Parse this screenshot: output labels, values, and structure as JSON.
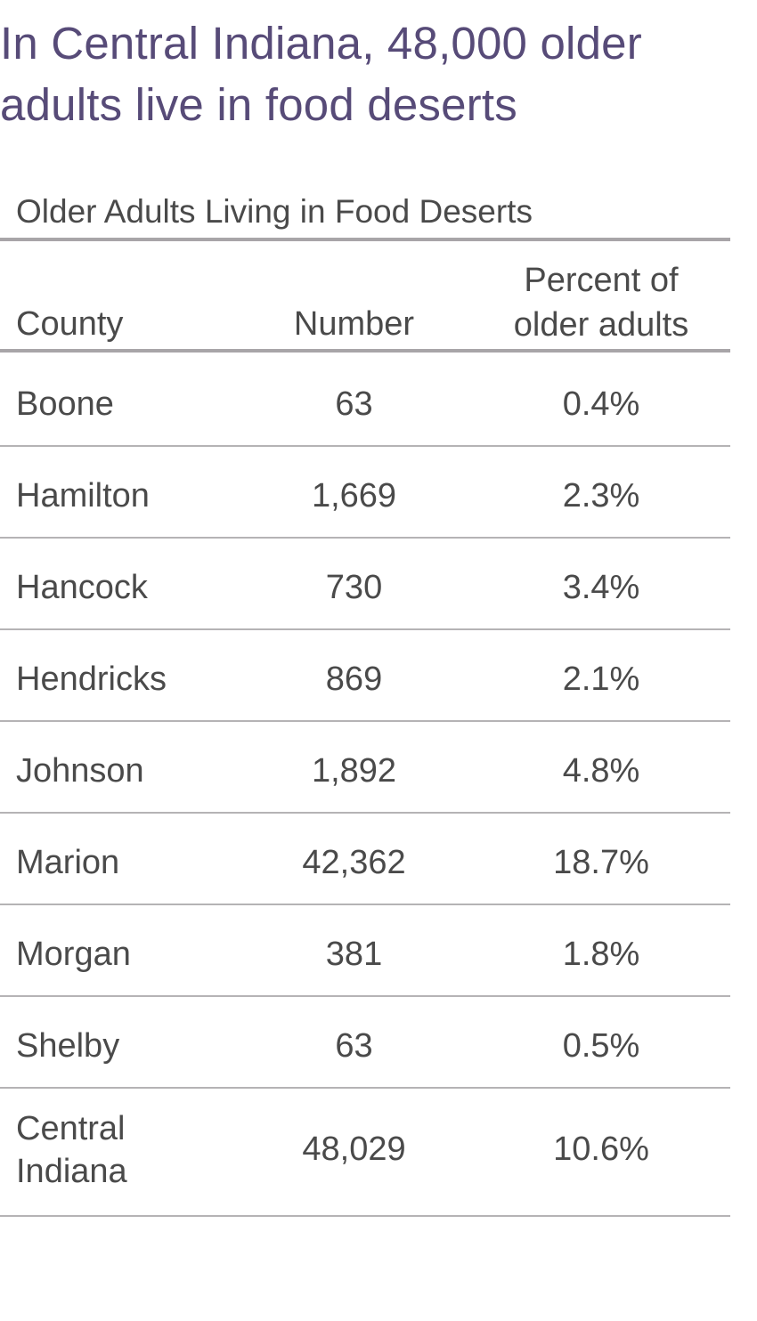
{
  "title": {
    "line1": "In Central Indiana, 48,000 older",
    "line2": "adults live in food deserts"
  },
  "colors": {
    "title": "#574b78",
    "text": "#4a4a4a",
    "rule": "#a8a5a8"
  },
  "chart_data": {
    "type": "table",
    "title": "Older Adults Living in Food Deserts",
    "columns": {
      "county": "County",
      "number": "Number",
      "percent_line1": "Percent of",
      "percent_line2": "older adults"
    },
    "rows": [
      {
        "county": "Boone",
        "number": "63",
        "percent": "0.4%"
      },
      {
        "county": "Hamilton",
        "number": "1,669",
        "percent": "2.3%"
      },
      {
        "county": "Hancock",
        "number": "730",
        "percent": "3.4%"
      },
      {
        "county": "Hendricks",
        "number": "869",
        "percent": "2.1%"
      },
      {
        "county": "Johnson",
        "number": "1,892",
        "percent": "4.8%"
      },
      {
        "county": "Marion",
        "number": "42,362",
        "percent": "18.7%"
      },
      {
        "county": "Morgan",
        "number": "381",
        "percent": "1.8%"
      },
      {
        "county": "Shelby",
        "number": "63",
        "percent": "0.5%"
      },
      {
        "county": "Central Indiana",
        "number": "48,029",
        "percent": "10.6%"
      }
    ]
  }
}
